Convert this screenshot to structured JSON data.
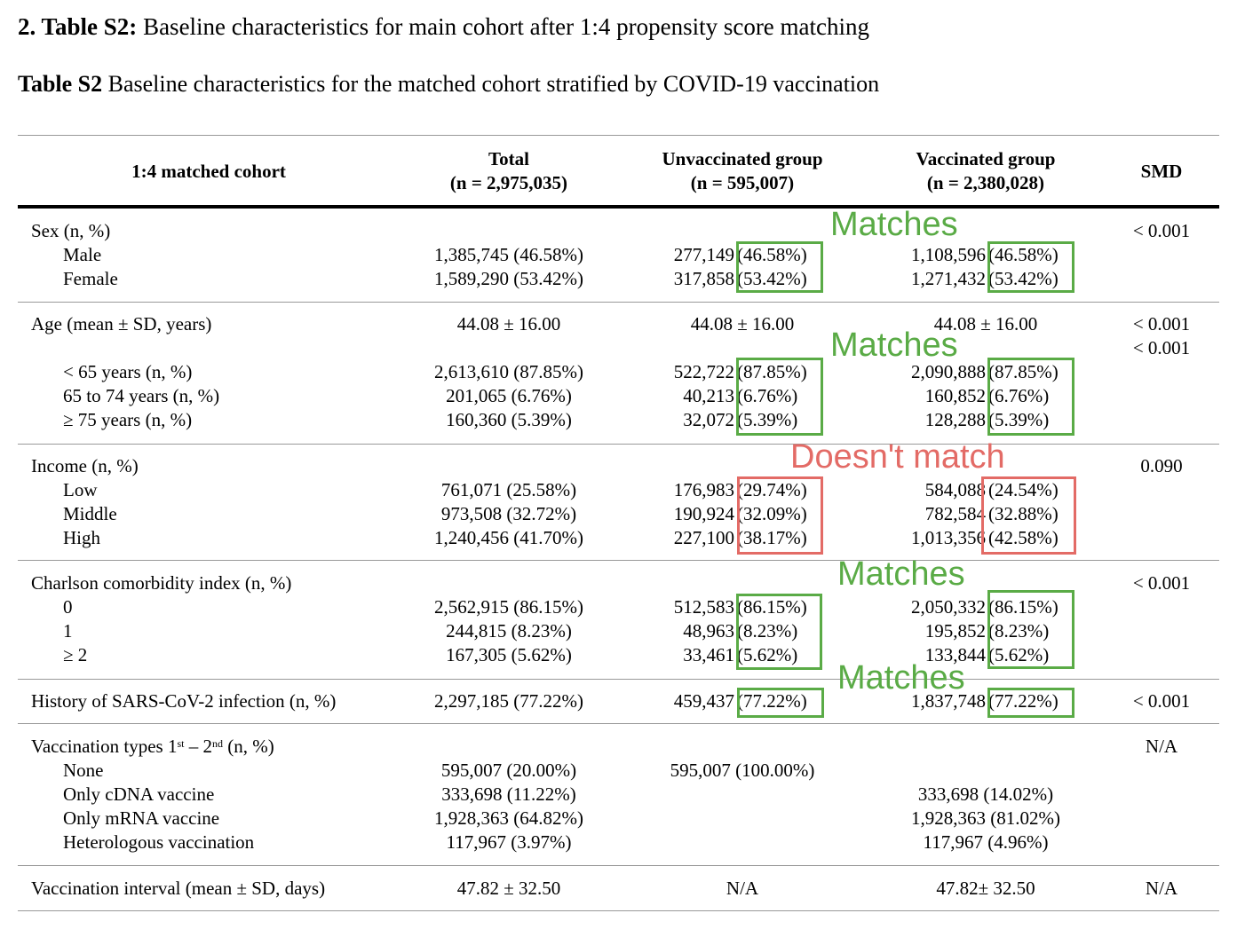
{
  "title": {
    "bold": "2. Table S2:",
    "rest": " Baseline characteristics for main cohort after 1:4 propensity score matching"
  },
  "subtitle": {
    "bold": "Table S2",
    "rest": " Baseline characteristics for the matched cohort stratified by COVID-19 vaccination"
  },
  "header": {
    "cohort": "1:4 matched cohort",
    "total": "Total",
    "total_n": "(n = 2,975,035)",
    "unvac": "Unvaccinated group",
    "unvac_n": "(n = 595,007)",
    "vacc": "Vaccinated group",
    "vacc_n": "(n = 2,380,028)",
    "smd": "SMD"
  },
  "sections": [
    {
      "rows": [
        {
          "label": "Sex (n, %)",
          "smd": "< 0.001"
        },
        {
          "label": "Male",
          "indent": true,
          "total": "1,385,745 (46.58%)",
          "unvac_n": "277,149",
          "unvac_pct": "(46.58%)",
          "vacc_n": "1,108,596",
          "vacc_pct": "(46.58%)"
        },
        {
          "label": "Female",
          "indent": true,
          "total": "1,589,290 (53.42%)",
          "unvac_n": "317,858",
          "unvac_pct": "(53.42%)",
          "vacc_n": "1,271,432",
          "vacc_pct": "(53.42%)"
        }
      ]
    },
    {
      "rows": [
        {
          "label": "Age (mean ± SD, years)",
          "total": "44.08 ± 16.00",
          "unvac": "44.08 ± 16.00",
          "vacc": "44.08 ± 16.00",
          "smd": "< 0.001"
        },
        {
          "smd": "< 0.001"
        },
        {
          "label": "< 65 years (n, %)",
          "indent": true,
          "total": "2,613,610 (87.85%)",
          "unvac_n": "522,722",
          "unvac_pct": "(87.85%)",
          "vacc_n": "2,090,888",
          "vacc_pct": "(87.85%)"
        },
        {
          "label": "65 to 74 years (n, %)",
          "indent": true,
          "total": "201,065 (6.76%)",
          "unvac_n": "40,213",
          "unvac_pct": "(6.76%)",
          "vacc_n": "160,852",
          "vacc_pct": "(6.76%)"
        },
        {
          "label": "≥ 75 years (n, %)",
          "indent": true,
          "total": "160,360 (5.39%)",
          "unvac_n": "32,072",
          "unvac_pct": "(5.39%)",
          "vacc_n": "128,288",
          "vacc_pct": "(5.39%)"
        }
      ]
    },
    {
      "rows": [
        {
          "label": "Income (n, %)",
          "smd": "0.090"
        },
        {
          "label": "Low",
          "indent": true,
          "total": "761,071 (25.58%)",
          "unvac_n": "176,983",
          "unvac_pct": "(29.74%)",
          "vacc_n": "584,088",
          "vacc_pct": "(24.54%)"
        },
        {
          "label": "Middle",
          "indent": true,
          "total": "973,508 (32.72%)",
          "unvac_n": "190,924",
          "unvac_pct": "(32.09%)",
          "vacc_n": "782,584",
          "vacc_pct": "(32.88%)"
        },
        {
          "label": "High",
          "indent": true,
          "total": "1,240,456 (41.70%)",
          "unvac_n": "227,100",
          "unvac_pct": "(38.17%)",
          "vacc_n": "1,013,356",
          "vacc_pct": "(42.58%)"
        }
      ]
    },
    {
      "rows": [
        {
          "label": "Charlson comorbidity index (n, %)",
          "smd": "< 0.001"
        },
        {
          "label": "0",
          "indent": true,
          "total": "2,562,915 (86.15%)",
          "unvac_n": "512,583",
          "unvac_pct": "(86.15%)",
          "vacc_n": "2,050,332",
          "vacc_pct": "(86.15%)"
        },
        {
          "label": "1",
          "indent": true,
          "total": "244,815 (8.23%)",
          "unvac_n": "48,963",
          "unvac_pct": "(8.23%)",
          "vacc_n": "195,852",
          "vacc_pct": "(8.23%)"
        },
        {
          "label": "≥ 2",
          "indent": true,
          "total": "167,305 (5.62%)",
          "unvac_n": "33,461",
          "unvac_pct": "(5.62%)",
          "vacc_n": "133,844",
          "vacc_pct": "(5.62%)"
        }
      ]
    },
    {
      "rows": [
        {
          "label": "History of SARS-CoV-2 infection (n, %)",
          "total": "2,297,185 (77.22%)",
          "unvac_n": "459,437",
          "unvac_pct": "(77.22%)",
          "vacc_n": "1,837,748",
          "vacc_pct": "(77.22%)",
          "smd": "< 0.001"
        }
      ]
    },
    {
      "rows": [
        {
          "label_parts": [
            {
              "t": "Vaccination types 1"
            },
            {
              "t": "st",
              "sup": true
            },
            {
              "t": " – 2"
            },
            {
              "t": "nd",
              "sup": true
            },
            {
              "t": " (n, %)"
            }
          ],
          "smd": "N/A"
        },
        {
          "label": "None",
          "indent": true,
          "total": "595,007 (20.00%)",
          "unvac": "595,007 (100.00%)"
        },
        {
          "label": "Only cDNA vaccine",
          "indent": true,
          "total": "333,698 (11.22%)",
          "vacc": "333,698 (14.02%)"
        },
        {
          "label": "Only mRNA vaccine",
          "indent": true,
          "total": "1,928,363 (64.82%)",
          "vacc": "1,928,363 (81.02%)"
        },
        {
          "label": "Heterologous vaccination",
          "indent": true,
          "total": "117,967 (3.97%)",
          "vacc": "117,967 (4.96%)"
        }
      ]
    },
    {
      "rows": [
        {
          "label": "Vaccination interval (mean ± SD, days)",
          "total": "47.82 ± 32.50",
          "unvac": "N/A",
          "vacc": "47.82± 32.50",
          "smd": "N/A"
        }
      ]
    }
  ],
  "annotations": [
    {
      "text": "Matches",
      "color": "#5aab46"
    },
    {
      "text": "Matches",
      "color": "#5aab46"
    },
    {
      "text": "Doesn't match",
      "color": "#e36b66"
    },
    {
      "text": "Matches",
      "color": "#5aab46"
    },
    {
      "text": "Matches",
      "color": "#5aab46"
    }
  ]
}
